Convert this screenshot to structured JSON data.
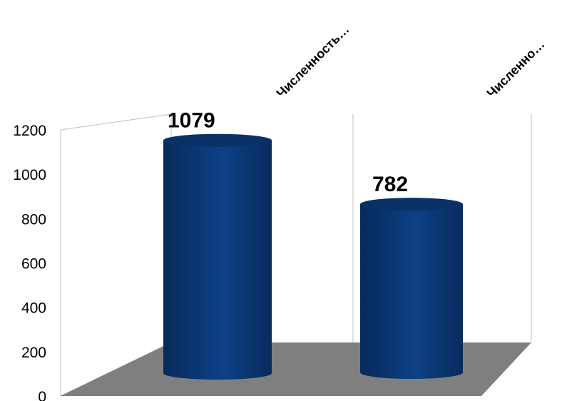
{
  "chart_data": {
    "type": "bar",
    "style": "3d-cylinder",
    "categories": [
      "Численность…",
      "Численно…"
    ],
    "values": [
      1079,
      782
    ],
    "data_labels": [
      "1079",
      "782"
    ],
    "ylim": [
      0,
      1200
    ],
    "y_ticks": [
      "0",
      "200",
      "400",
      "600",
      "800",
      "1000",
      "1200"
    ],
    "title": "",
    "xlabel": "",
    "ylabel": "",
    "grid": false,
    "legend": "none",
    "colors": {
      "bar": "#0b3a78",
      "bar_dark": "#072a5a",
      "bar_top": "#0a3166",
      "floor": "#7f7f7f",
      "walls": "#c0c0c0"
    }
  }
}
